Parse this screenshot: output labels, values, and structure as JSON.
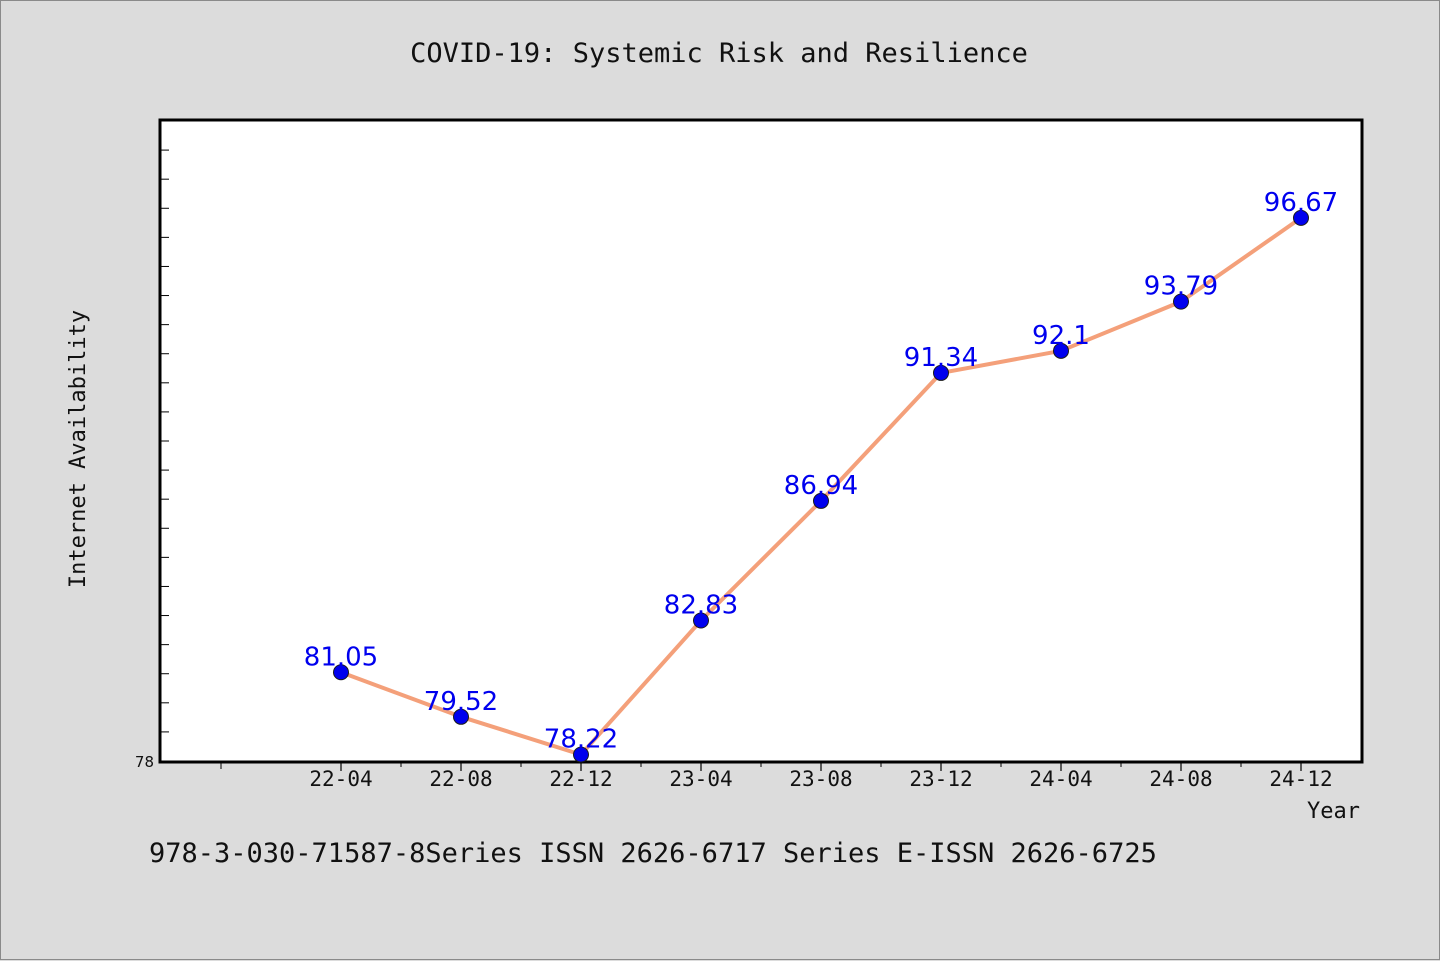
{
  "colors": {
    "background": "#dcdcdc",
    "plot_background": "#ffffff",
    "line": "#f4a07a",
    "marker": "#0000ee",
    "data_label": "#0000ee"
  },
  "chart_data": {
    "type": "line",
    "title": "COVID-19: Systemic Risk and Resilience",
    "xlabel": "Year",
    "ylabel": "Internet Availability",
    "categories": [
      "22-04",
      "22-08",
      "22-12",
      "23-04",
      "23-08",
      "23-12",
      "24-04",
      "24-08",
      "24-12"
    ],
    "series": [
      {
        "values": [
          81.05,
          79.52,
          78.22,
          82.83,
          86.94,
          91.34,
          92.1,
          93.79,
          96.67
        ],
        "labels": [
          "81.05",
          "79.52",
          "78.22",
          "82.83",
          "86.94",
          "91.34",
          "92.1",
          "93.79",
          "96.67"
        ]
      }
    ],
    "y_min_label": "78",
    "ylim": [
      78,
      100
    ],
    "y_minor_tick_step": 1,
    "grid": false,
    "data_labels": true
  },
  "footer": "978-3-030-71587-8Series ISSN 2626-6717 Series E-ISSN 2626-6725"
}
